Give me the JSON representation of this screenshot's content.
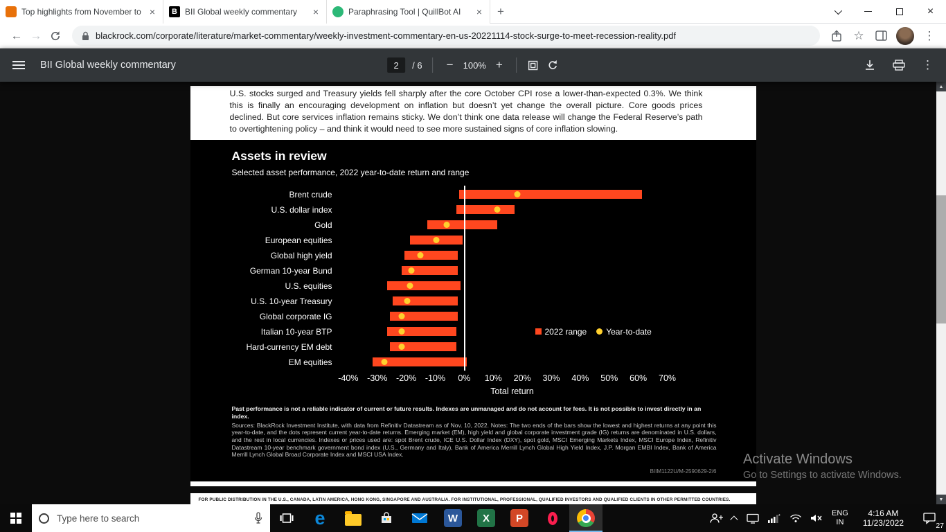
{
  "browser": {
    "tabs": [
      {
        "title": "Top highlights from November to",
        "favicon": "orange-square"
      },
      {
        "title": "BII Global weekly commentary",
        "favicon": "blackrock",
        "favicon_text": "B",
        "active": true
      },
      {
        "title": "Paraphrasing Tool | QuillBot AI",
        "favicon": "quillbot-green"
      }
    ],
    "url": "blackrock.com/corporate/literature/market-commentary/weekly-investment-commentary-en-us-20221114-stock-surge-to-meet-recession-reality.pdf"
  },
  "icons": {
    "close": "×",
    "plus": "+",
    "minus": "−",
    "back": "←",
    "forward": "→",
    "kebab": "⋮",
    "star": "☆",
    "arrow_up": "▲",
    "arrow_down": "▼"
  },
  "pdf_toolbar": {
    "title": "BII Global weekly commentary",
    "page_current": "2",
    "page_total": "/ 6",
    "zoom": "100%"
  },
  "document": {
    "intro_text": "U.S. stocks surged and Treasury yields fell sharply after the core October CPI rose a lower-than-expected 0.3%. We think this is finally an encouraging development on inflation but doesn’t yet change the overall picture. Core goods prices declined. But core services inflation remains sticky. We don’t think one data release will change the Federal Reserve’s path to overtightening policy – and think it would need to see more sustained signs of core inflation slowing.",
    "footer_bold": "Past performance is not a reliable indicator of current or future results. Indexes are unmanaged and do not account for fees. It is not possible to invest directly in an index.",
    "footer_text": "Sources: BlackRock Investment Institute, with data from Refinitiv Datastream as of Nov. 10, 2022. Notes: The two ends of the bars show the lowest and highest returns at any point this year-to-date, and the dots represent current year-to-date returns. Emerging market (EM), high yield and global corporate investment grade (IG) returns are denominated in U.S. dollars, and the rest in local currencies. Indexes or prices used are: spot Brent crude, ICE U.S. Dollar Index (DXY), spot gold, MSCI Emerging Markets Index, MSCI Europe Index, Refinitiv Datastream 10-year benchmark government bond index (U.S., Germany and Italy), Bank of America Merrill Lynch Global High Yield Index, J.P. Morgan EMBI Index, Bank of America Merrill Lynch Global Broad Corporate Index and MSCI USA Index.",
    "doc_id": "BIIM1122U/M-2590629-2/6",
    "next_page_text": "FOR PUBLIC DISTRIBUTION IN THE U.S., CANADA, LATIN AMERICA, HONG KONG, SINGAPORE AND AUSTRALIA. FOR INSTITUTIONAL, PROFESSIONAL, QUALIFIED INVESTORS AND QUALIFIED CLIENTS IN OTHER PERMITTED COUNTRIES."
  },
  "chart_data": {
    "type": "bar",
    "orientation": "horizontal",
    "title": "Assets in review",
    "subtitle": "Selected asset performance, 2022 year-to-date return and range",
    "xlabel": "Total return",
    "xlim": [
      -42,
      75
    ],
    "ticks": [
      -40,
      -30,
      -20,
      -10,
      0,
      10,
      20,
      30,
      40,
      50,
      60,
      70
    ],
    "grid": false,
    "legend_position": "inside-right",
    "colors": {
      "range": "#ff471f",
      "dot": "#ffd02e",
      "zero_line": "#ffffff"
    },
    "legend": [
      {
        "label": "2022 range",
        "color": "#ff471f",
        "shape": "square"
      },
      {
        "label": "Year-to-date",
        "color": "#ffd02e",
        "shape": "circle"
      }
    ],
    "categories": [
      "Brent crude",
      "U.S. dollar index",
      "Gold",
      "European equities",
      "Global high yield",
      "German 10-year Bund",
      "U.S. equities",
      "U.S. 10-year Treasury",
      "Global corporate IG",
      "Italian 10-year BTP",
      "Hard-currency EM debt",
      "EM equities"
    ],
    "series": [
      {
        "name": "2022 range",
        "type": "range",
        "values": [
          [
            0,
            63
          ],
          [
            -1,
            19
          ],
          [
            -11,
            13
          ],
          [
            -17,
            1
          ],
          [
            -19,
            -0.5
          ],
          [
            -20,
            -0.5
          ],
          [
            -25,
            0.5
          ],
          [
            -23,
            -0.5
          ],
          [
            -24,
            -0.5
          ],
          [
            -25,
            -1
          ],
          [
            -24,
            -1
          ],
          [
            -30,
            2.5
          ]
        ]
      },
      {
        "name": "Year-to-date",
        "type": "dot",
        "values": [
          20,
          13,
          -4.5,
          -8,
          -13.5,
          -16.5,
          -17,
          -18,
          -20,
          -20,
          -20,
          -26
        ]
      }
    ]
  },
  "watermark": {
    "line1": "Activate Windows",
    "line2": "Go to Settings to activate Windows."
  },
  "taskbar": {
    "search_placeholder": "Type here to search",
    "language": "ENG",
    "region": "IN",
    "time": "4:16 AM",
    "date": "11/23/2022",
    "notification_count": "27",
    "icons": [
      "windows-start",
      "search",
      "microphone",
      "task-view",
      "edge",
      "file-explorer",
      "microsoft-store",
      "mail",
      "word",
      "excel",
      "powerpoint",
      "opera",
      "chrome",
      "people",
      "tray-expand",
      "monitor",
      "cellular",
      "wifi",
      "volume-muted",
      "notifications"
    ]
  }
}
